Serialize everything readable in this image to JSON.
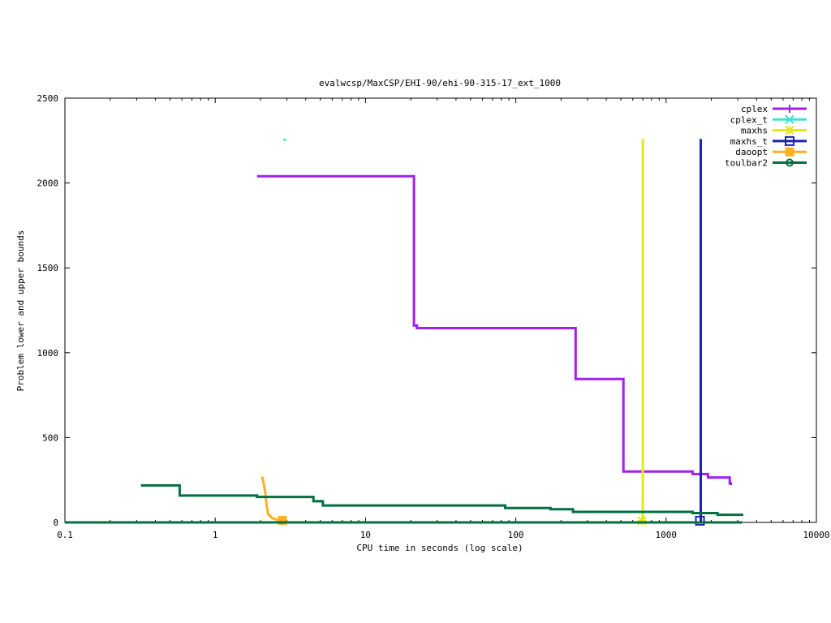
{
  "chart_data": {
    "type": "line",
    "title": "evalwcsp/MaxCSP/EHI-90/ehi-90-315-17_ext_1000",
    "xlabel": "CPU time in seconds (log scale)",
    "ylabel": "Problem lower and upper bounds",
    "xscale": "log",
    "xlim": [
      0.1,
      10000
    ],
    "ylim": [
      0,
      2500
    ],
    "xticks": [
      0.1,
      1,
      10,
      100,
      1000,
      10000
    ],
    "xtick_labels": [
      "0.1",
      "1",
      "10",
      "100",
      "1000",
      "10000"
    ],
    "yticks": [
      0,
      500,
      1000,
      1500,
      2000,
      2500
    ],
    "ytick_labels": [
      "0",
      "500",
      "1000",
      "1500",
      "2000",
      "2500"
    ],
    "grid": false,
    "legend_position": "top-right",
    "series": [
      {
        "name": "cplex",
        "color": "#a020f0",
        "marker": "plus",
        "steps": [
          [
            [
              1.9,
              2040
            ],
            [
              21,
              2040
            ],
            [
              21,
              1160
            ],
            [
              22,
              1160
            ],
            [
              22,
              1145
            ],
            [
              250,
              1145
            ],
            [
              250,
              845
            ],
            [
              520,
              845
            ],
            [
              520,
              300
            ],
            [
              1500,
              300
            ],
            [
              1500,
              285
            ],
            [
              1900,
              285
            ],
            [
              1900,
              265
            ],
            [
              2650,
              265
            ],
            [
              2650,
              230
            ],
            [
              2700,
              230
            ],
            [
              2700,
              220
            ]
          ],
          [
            [
              470,
              0
            ],
            [
              2700,
              0
            ]
          ]
        ]
      },
      {
        "name": "cplex_t",
        "color": "#40e0d0",
        "marker": "cross",
        "steps": [
          [
            [
              2.85,
              2255
            ],
            [
              2.95,
              2255
            ]
          ]
        ]
      },
      {
        "name": "maxhs",
        "color": "#e5e51a",
        "marker": "star",
        "steps": [
          [
            [
              700,
              2260
            ],
            [
              700,
              0
            ]
          ]
        ],
        "points": [
          [
            690,
            10
          ]
        ]
      },
      {
        "name": "maxhs_t",
        "color": "#2020b0",
        "marker": "square",
        "steps": [
          [
            [
              1700,
              2260
            ],
            [
              1700,
              0
            ]
          ]
        ],
        "points": [
          [
            1680,
            10
          ]
        ]
      },
      {
        "name": "daoopt",
        "color": "#ffb020",
        "marker": "filled-square",
        "steps": [
          [
            [
              2.05,
              270
            ],
            [
              2.1,
              230
            ],
            [
              2.15,
              180
            ],
            [
              2.2,
              100
            ],
            [
              2.25,
              50
            ],
            [
              2.4,
              25
            ],
            [
              2.6,
              15
            ],
            [
              2.9,
              10
            ]
          ],
          [
            [
              0.1,
              0
            ],
            [
              3100,
              0
            ]
          ]
        ],
        "points": [
          [
            2.8,
            12
          ]
        ]
      },
      {
        "name": "toulbar2",
        "color": "#007040",
        "marker": "circle",
        "steps": [
          [
            [
              0.32,
              218
            ],
            [
              0.58,
              218
            ],
            [
              0.58,
              158
            ],
            [
              1.9,
              158
            ],
            [
              1.9,
              150
            ],
            [
              4.5,
              150
            ],
            [
              4.5,
              125
            ],
            [
              5.2,
              125
            ],
            [
              5.2,
              100
            ],
            [
              85,
              100
            ],
            [
              85,
              85
            ],
            [
              170,
              85
            ],
            [
              170,
              78
            ],
            [
              240,
              78
            ],
            [
              240,
              62
            ],
            [
              1500,
              62
            ],
            [
              1500,
              55
            ],
            [
              2200,
              55
            ],
            [
              2200,
              45
            ],
            [
              3200,
              45
            ],
            [
              3200,
              38
            ]
          ],
          [
            [
              0.1,
              0
            ],
            [
              3200,
              0
            ]
          ]
        ]
      }
    ]
  }
}
